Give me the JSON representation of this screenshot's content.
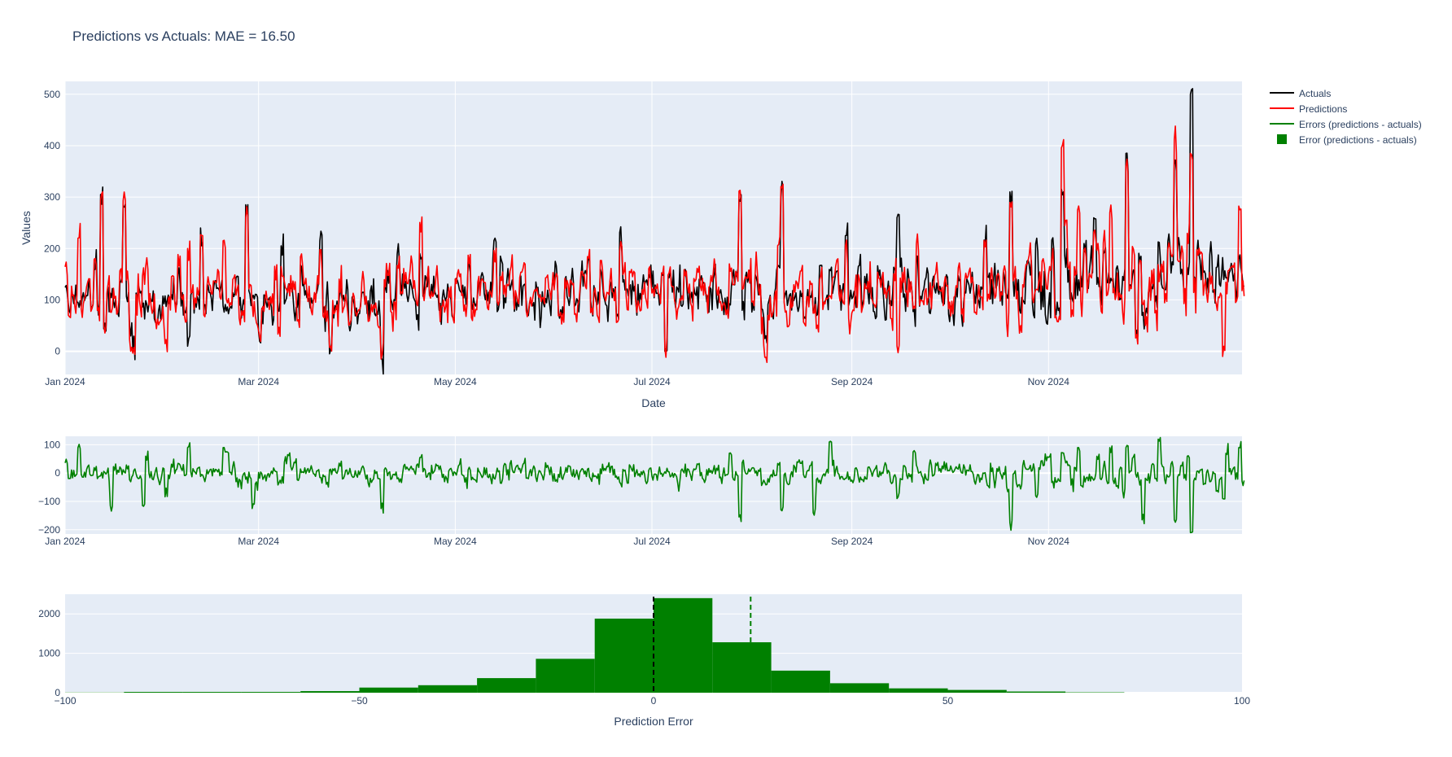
{
  "chart_data": [
    {
      "type": "line",
      "title": "Predictions vs Actuals: MAE = 16.50",
      "xlabel": "Date",
      "ylabel": "Values",
      "x_range": [
        "2024-01-01",
        "2024-12-31"
      ],
      "ylim": [
        -45,
        525
      ],
      "yticks": [
        0,
        100,
        200,
        300,
        400,
        500
      ],
      "xticks": [
        {
          "date": "2024-01-01",
          "label": "Jan 2024"
        },
        {
          "date": "2024-03-01",
          "label": "Mar 2024"
        },
        {
          "date": "2024-05-01",
          "label": "May 2024"
        },
        {
          "date": "2024-07-01",
          "label": "Jul 2024"
        },
        {
          "date": "2024-09-01",
          "label": "Sep 2024"
        },
        {
          "date": "2024-11-01",
          "label": "Nov 2024"
        }
      ],
      "series": [
        {
          "name": "Actuals",
          "color": "#000000",
          "weekly_peaks": [
            {
              "date": "2024-01-05",
              "value": 95
            },
            {
              "date": "2024-01-12",
              "value": 305
            },
            {
              "date": "2024-01-19",
              "value": 280
            },
            {
              "date": "2024-02-05",
              "value": 150
            },
            {
              "date": "2024-02-12",
              "value": 240
            },
            {
              "date": "2024-02-26",
              "value": 285
            },
            {
              "date": "2024-03-08",
              "value": 205
            },
            {
              "date": "2024-03-20",
              "value": 215
            },
            {
              "date": "2024-04-10",
              "value": 205
            },
            {
              "date": "2024-04-20",
              "value": 190
            },
            {
              "date": "2024-05-15",
              "value": 185
            },
            {
              "date": "2024-06-01",
              "value": 175
            },
            {
              "date": "2024-06-15",
              "value": 160
            },
            {
              "date": "2024-07-01",
              "value": 125
            },
            {
              "date": "2024-07-28",
              "value": 295
            },
            {
              "date": "2024-08-10",
              "value": 300
            },
            {
              "date": "2024-08-20",
              "value": 300
            },
            {
              "date": "2024-08-30",
              "value": 225
            },
            {
              "date": "2024-09-15",
              "value": 260
            },
            {
              "date": "2024-10-10",
              "value": 305
            },
            {
              "date": "2024-10-20",
              "value": 310
            },
            {
              "date": "2024-11-05",
              "value": 315
            },
            {
              "date": "2024-11-25",
              "value": 385
            },
            {
              "date": "2024-12-10",
              "value": 365
            },
            {
              "date": "2024-12-15",
              "value": 500
            },
            {
              "date": "2024-12-26",
              "value": 260
            }
          ],
          "weekly_troughs": [
            {
              "date": "2024-01-22",
              "value": 5
            },
            {
              "date": "2024-02-08",
              "value": 10
            },
            {
              "date": "2024-03-23",
              "value": -5
            },
            {
              "date": "2024-04-08",
              "value": -10
            },
            {
              "date": "2024-07-05",
              "value": 0
            },
            {
              "date": "2024-08-05",
              "value": 25
            },
            {
              "date": "2024-09-08",
              "value": -5
            },
            {
              "date": "2024-10-20",
              "value": -5
            },
            {
              "date": "2024-11-30",
              "value": -5
            },
            {
              "date": "2024-12-25",
              "value": 0
            }
          ]
        },
        {
          "name": "Predictions",
          "color": "#ff0000",
          "weekly_peaks": [
            {
              "date": "2024-01-05",
              "value": 220
            },
            {
              "date": "2024-01-26",
              "value": 165
            },
            {
              "date": "2024-02-08",
              "value": 200
            },
            {
              "date": "2024-02-19",
              "value": 215
            },
            {
              "date": "2024-03-15",
              "value": 200
            },
            {
              "date": "2024-04-25",
              "value": 145
            },
            {
              "date": "2024-06-10",
              "value": 145
            },
            {
              "date": "2024-07-25",
              "value": 170
            },
            {
              "date": "2024-08-10",
              "value": 215
            },
            {
              "date": "2024-10-05",
              "value": 200
            },
            {
              "date": "2024-11-10",
              "value": 275
            },
            {
              "date": "2024-11-20",
              "value": 270
            },
            {
              "date": "2024-12-15",
              "value": 385
            }
          ],
          "weekly_troughs": [
            {
              "date": "2024-02-01",
              "value": 15
            },
            {
              "date": "2024-04-08",
              "value": -15
            },
            {
              "date": "2024-07-05",
              "value": 5
            },
            {
              "date": "2024-09-15",
              "value": 10
            },
            {
              "date": "2024-12-25",
              "value": -10
            }
          ]
        }
      ],
      "legend": {
        "placement": "top-right"
      }
    },
    {
      "type": "line",
      "x_range": [
        "2024-01-01",
        "2024-12-31"
      ],
      "ylim": [
        -215,
        130
      ],
      "yticks": [
        100,
        0,
        -100,
        -200
      ],
      "ytick_labels": [
        "100",
        "0",
        "−100",
        "−200"
      ],
      "xticks": [
        {
          "date": "2024-01-01",
          "label": "Jan 2024"
        },
        {
          "date": "2024-03-01",
          "label": "Mar 2024"
        },
        {
          "date": "2024-05-01",
          "label": "May 2024"
        },
        {
          "date": "2024-07-01",
          "label": "Jul 2024"
        },
        {
          "date": "2024-09-01",
          "label": "Sep 2024"
        },
        {
          "date": "2024-11-01",
          "label": "Nov 2024"
        }
      ],
      "series": [
        {
          "name": "Errors (predictions - actuals)",
          "color": "#008000",
          "weekly_peaks": [
            {
              "date": "2024-02-20",
              "value": 75
            },
            {
              "date": "2024-03-10",
              "value": 65
            },
            {
              "date": "2024-08-25",
              "value": 110
            },
            {
              "date": "2024-09-20",
              "value": 75
            },
            {
              "date": "2024-11-25",
              "value": 90
            },
            {
              "date": "2024-12-05",
              "value": 120
            },
            {
              "date": "2024-12-10",
              "value": 110
            },
            {
              "date": "2024-12-26",
              "value": 70
            }
          ],
          "weekly_troughs": [
            {
              "date": "2024-01-15",
              "value": -115
            },
            {
              "date": "2024-01-25",
              "value": -115
            },
            {
              "date": "2024-02-28",
              "value": -125
            },
            {
              "date": "2024-04-08",
              "value": -125
            },
            {
              "date": "2024-07-28",
              "value": -155
            },
            {
              "date": "2024-08-10",
              "value": -130
            },
            {
              "date": "2024-08-20",
              "value": -140
            },
            {
              "date": "2024-10-20",
              "value": -175
            },
            {
              "date": "2024-11-30",
              "value": -165
            },
            {
              "date": "2024-12-10",
              "value": -165
            },
            {
              "date": "2024-12-15",
              "value": -210
            }
          ]
        }
      ]
    },
    {
      "type": "bar",
      "xlabel": "Prediction Error",
      "xlim": [
        -100,
        100
      ],
      "ylim": [
        0,
        2500
      ],
      "xticks": [
        -100,
        -50,
        0,
        50,
        100
      ],
      "xtick_labels": [
        "−100",
        "−50",
        "0",
        "50",
        "100"
      ],
      "yticks": [
        0,
        1000,
        2000
      ],
      "bin_width": 10,
      "bins": [
        {
          "x0": -100,
          "count": 5
        },
        {
          "x0": -90,
          "count": 20
        },
        {
          "x0": -80,
          "count": 20
        },
        {
          "x0": -70,
          "count": 20
        },
        {
          "x0": -60,
          "count": 40
        },
        {
          "x0": -50,
          "count": 130
        },
        {
          "x0": -40,
          "count": 190
        },
        {
          "x0": -30,
          "count": 370
        },
        {
          "x0": -20,
          "count": 860
        },
        {
          "x0": -10,
          "count": 1880
        },
        {
          "x0": 0,
          "count": 2400
        },
        {
          "x0": 10,
          "count": 1280
        },
        {
          "x0": 20,
          "count": 560
        },
        {
          "x0": 30,
          "count": 240
        },
        {
          "x0": 40,
          "count": 110
        },
        {
          "x0": 50,
          "count": 70
        },
        {
          "x0": 60,
          "count": 30
        },
        {
          "x0": 70,
          "count": 10
        }
      ],
      "series": [
        {
          "name": "Error (predictions - actuals)",
          "color": "#008000"
        }
      ],
      "reference_lines": [
        {
          "x": 0,
          "color": "#000000",
          "style": "dashed"
        },
        {
          "x": 16.5,
          "color": "#008000",
          "style": "dashed"
        }
      ]
    }
  ]
}
